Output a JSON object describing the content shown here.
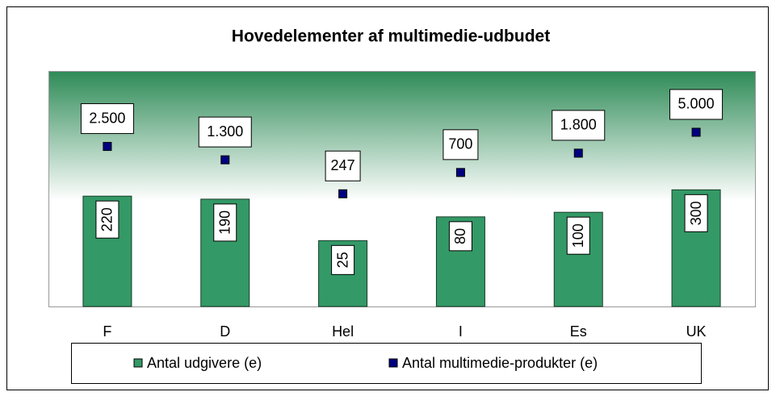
{
  "chart_data": {
    "type": "bar_marker",
    "title": "Hovedelementer af multimedie-udbudet",
    "categories": [
      "F",
      "D",
      "Hel",
      "I",
      "Es",
      "UK"
    ],
    "series": [
      {
        "name": "Antal udgivere (e)",
        "color": "#339966",
        "values": [
          220,
          190,
          25,
          80,
          100,
          300
        ]
      },
      {
        "name": "Antal multimedie-produkter (e)",
        "color": "#000080",
        "values": [
          2500,
          1300,
          247,
          700,
          1800,
          5000
        ],
        "value_labels": [
          "2.500",
          "1.300",
          "247",
          "700",
          "1.800",
          "5.000"
        ]
      }
    ],
    "ylim": [
      1,
      100000
    ],
    "log_scale": true,
    "legend": "bottom"
  }
}
